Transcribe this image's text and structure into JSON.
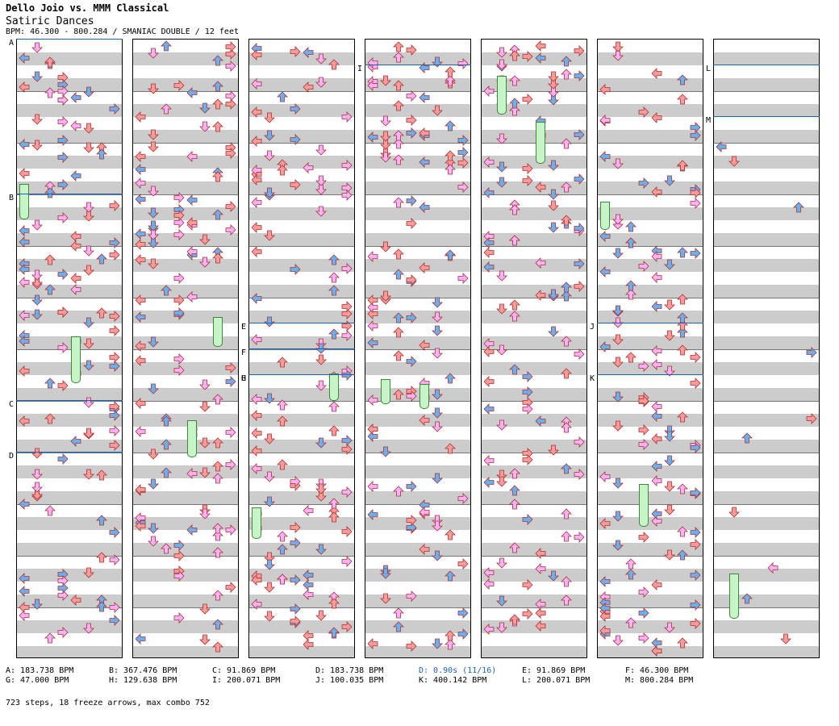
{
  "header": {
    "title": "Dello Joio vs. MMM Classical",
    "subtitle": "Satiric Dances",
    "bpm_info": "BPM: 46.300 - 800.284 / SMANIAC DOUBLE / 12 feet"
  },
  "colors": {
    "red_arrow": "#ff9a9a",
    "blue_arrow": "#6ab0f0",
    "pink_arrow": "#ffb0ff",
    "yellow_arrow": "#ffff66",
    "freeze": "#c8f5c8",
    "bpm_line": "#1f5fb4",
    "row_shade": "#cccccc"
  },
  "markers": [
    {
      "col": 0,
      "label": "A",
      "row": 0
    },
    {
      "col": 0,
      "label": "B",
      "row": 12
    },
    {
      "col": 0,
      "label": "C",
      "row": 28
    },
    {
      "col": 0,
      "label": "D",
      "row": 32
    },
    {
      "col": 2,
      "label": "E",
      "row": 22
    },
    {
      "col": 2,
      "label": "F",
      "row": 24
    },
    {
      "col": 2,
      "label": "G",
      "row": 26
    },
    {
      "col": 2,
      "label": "H",
      "row": 26
    },
    {
      "col": 3,
      "label": "I",
      "row": 2
    },
    {
      "col": 5,
      "label": "J",
      "row": 22
    },
    {
      "col": 5,
      "label": "K",
      "row": 26
    },
    {
      "col": 6,
      "label": "L",
      "row": 2
    },
    {
      "col": 6,
      "label": "M",
      "row": 6
    }
  ],
  "legend": [
    "A: 183.738 BPM",
    "B: 367.476 BPM",
    "C: 91.869 BPM",
    "D: 183.738 BPM",
    "D: 0.90s (11/16)",
    "E: 91.869 BPM",
    "F: 46.300 BPM",
    "G: 47.000 BPM",
    "H: 129.638 BPM",
    "I: 200.071 BPM",
    "J: 100.035 BPM",
    "K: 400.142 BPM",
    "L: 200.071 BPM",
    "M: 800.284 BPM"
  ],
  "footer": "723 steps, 18 freeze arrows, max combo 752"
}
